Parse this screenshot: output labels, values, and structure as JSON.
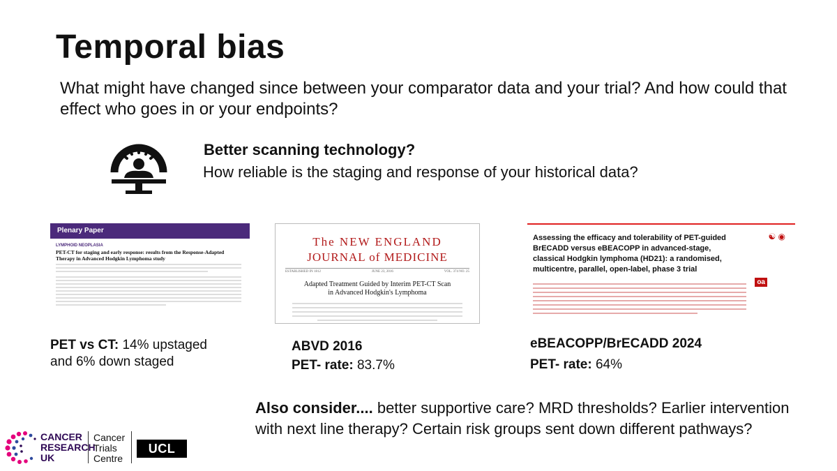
{
  "slide": {
    "title": "Temporal bias",
    "intro": "What might have changed since between your comparator data and your trial? And how could that effect who goes in or your endpoints?",
    "scanner_icon": "ct-scanner-icon",
    "scan_heading": "Better scanning technology?",
    "scan_question": "How reliable is the staging and response of your historical data?"
  },
  "papers": [
    {
      "header_bar": "Plenary Paper",
      "section": "LYMPHOID NEOPLASIA",
      "title": "PET-CT for staging and early response: results from the Response-Adapted Therapy in Advanced Hodgkin Lymphoma study",
      "caption_bold": "PET vs CT:",
      "caption_rest": "  14% upstaged",
      "caption_line2": "and 6% down staged",
      "accent": "#4b2a7b"
    },
    {
      "masthead_line1": "The NEW ENGLAND",
      "masthead_line2": "JOURNAL of MEDICINE",
      "meta_left": "ESTABLISHED IN 1812",
      "meta_center": "JUNE 23, 2016",
      "meta_right": "VOL. 374  NO. 25",
      "title_line1": "Adapted Treatment Guided by Interim PET-CT Scan",
      "title_line2": "in Advanced Hodgkin's Lymphoma",
      "caption_title": "ABVD 2016",
      "caption_bold": "PET- rate:",
      "caption_value": " 83.7%",
      "accent": "#b21a1a"
    },
    {
      "title": "Assessing the efficacy and tolerability of PET-guided BrECADD versus eBEACOPP in advanced-stage, classical Hodgkin lymphoma (HD21): a randomised, multicentre, parallel, open-label, phase 3 trial",
      "oa_badge": "oa",
      "caption_title": "eBEACOPP/BrECADD 2024",
      "caption_bold": "PET- rate:",
      "caption_value": " 64%",
      "accent": "#c01010"
    }
  ],
  "also_consider": {
    "bold": "Also consider....",
    "rest": " better supportive care? MRD thresholds? Earlier intervention with next line therapy? Certain risk groups sent down different pathways?"
  },
  "logos": {
    "cruk_line1": "CANCER",
    "cruk_line2": "RESEARCH",
    "cruk_line3": "UK",
    "ctc_line1": "Cancer",
    "ctc_line2": "Trials",
    "ctc_line3": "Centre",
    "ucl": "UCL"
  }
}
